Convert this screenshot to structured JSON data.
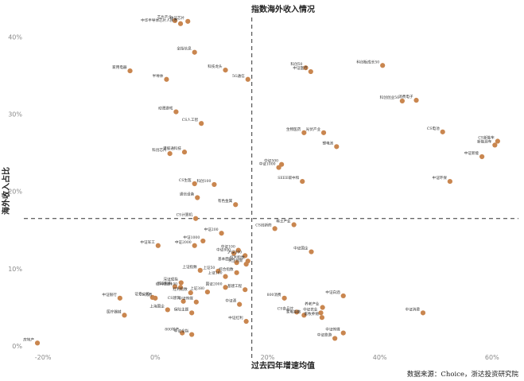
{
  "chart_data": {
    "type": "scatter",
    "title": "指数海外收入情况",
    "xlabel": "过去四年增速均值",
    "ylabel": "海外收入占比",
    "source": "数据来源：Choice，浙达投资研究院",
    "xlim": [
      -0.22,
      0.63
    ],
    "ylim": [
      -0.005,
      0.425
    ],
    "x_ticks": [
      -0.2,
      0.0,
      0.2,
      0.4,
      0.6
    ],
    "x_tick_labels": [
      "-20%",
      "0%",
      "20%",
      "40%",
      "60%"
    ],
    "y_ticks": [
      0.0,
      0.1,
      0.2,
      0.3,
      0.4
    ],
    "y_tick_labels": [
      "0%",
      "10%",
      "20%",
      "30%",
      "40%"
    ],
    "x_ref": 0.172,
    "y_ref": 0.165,
    "marker_color": "#c9864f",
    "points": [
      {
        "label": "芯片产业",
        "x": 0.035,
        "y": 0.421
      },
      {
        "label": "中证芯片",
        "x": 0.058,
        "y": 0.42
      },
      {
        "label": "中华半导体芯片人民币",
        "x": 0.045,
        "y": 0.417
      },
      {
        "label": "全指信息",
        "x": 0.07,
        "y": 0.38
      },
      {
        "label": "家用电器",
        "x": -0.045,
        "y": 0.356
      },
      {
        "label": "半导体",
        "x": 0.02,
        "y": 0.345
      },
      {
        "label": "科技龙头",
        "x": 0.125,
        "y": 0.357
      },
      {
        "label": "5G通信",
        "x": 0.165,
        "y": 0.345
      },
      {
        "label": "科创50",
        "x": 0.268,
        "y": 0.36
      },
      {
        "label": "中证医疗",
        "x": 0.277,
        "y": 0.355
      },
      {
        "label": "科创板成长50",
        "x": 0.405,
        "y": 0.363
      },
      {
        "label": "消费电子",
        "x": 0.465,
        "y": 0.318
      },
      {
        "label": "科创创业50",
        "x": 0.44,
        "y": 0.317
      },
      {
        "label": "动漫游戏",
        "x": 0.037,
        "y": 0.303
      },
      {
        "label": "CS人工智",
        "x": 0.082,
        "y": 0.288
      },
      {
        "label": "生物医药",
        "x": 0.265,
        "y": 0.276
      },
      {
        "label": "光伏产业",
        "x": 0.3,
        "y": 0.276
      },
      {
        "label": "锂电池",
        "x": 0.323,
        "y": 0.258
      },
      {
        "label": "CS电池",
        "x": 0.512,
        "y": 0.277
      },
      {
        "label": "CS新能车",
        "x": 0.61,
        "y": 0.265
      },
      {
        "label": "新能源车",
        "x": 0.605,
        "y": 0.26
      },
      {
        "label": "中证新能",
        "x": 0.582,
        "y": 0.245
      },
      {
        "label": "科创芯片",
        "x": 0.026,
        "y": 0.249
      },
      {
        "label": "港股通科技",
        "x": 0.052,
        "y": 0.251
      },
      {
        "label": "中证500",
        "x": 0.225,
        "y": 0.235
      },
      {
        "label": "中证1000",
        "x": 0.22,
        "y": 0.231
      },
      {
        "label": "中证环保",
        "x": 0.525,
        "y": 0.213
      },
      {
        "label": "CS生医",
        "x": 0.07,
        "y": 0.21
      },
      {
        "label": "科创100",
        "x": 0.105,
        "y": 0.209
      },
      {
        "label": "SEEE碳中和",
        "x": 0.262,
        "y": 0.213
      },
      {
        "label": "通信设备",
        "x": 0.075,
        "y": 0.192
      },
      {
        "label": "有色金属",
        "x": 0.143,
        "y": 0.183
      },
      {
        "label": "CS计算机",
        "x": 0.072,
        "y": 0.165
      },
      {
        "label": "稀土产业",
        "x": 0.247,
        "y": 0.157
      },
      {
        "label": "CS创新药",
        "x": 0.213,
        "y": 0.152
      },
      {
        "label": "中证军工",
        "x": 0.005,
        "y": 0.13
      },
      {
        "label": "中证200",
        "x": 0.118,
        "y": 0.146
      },
      {
        "label": "中证1000",
        "x": 0.085,
        "y": 0.136
      },
      {
        "label": "中证2000",
        "x": 0.07,
        "y": 0.13
      },
      {
        "label": "中证国企",
        "x": 0.278,
        "y": 0.122
      },
      {
        "label": "中证100",
        "x": 0.148,
        "y": 0.124
      },
      {
        "label": "中证800",
        "x": 0.14,
        "y": 0.12
      },
      {
        "label": "沪深300",
        "x": 0.16,
        "y": 0.117
      },
      {
        "label": "红利指数",
        "x": 0.165,
        "y": 0.11
      },
      {
        "label": "基本面50",
        "x": 0.145,
        "y": 0.108
      },
      {
        "label": "央企创新",
        "x": 0.162,
        "y": 0.106
      },
      {
        "label": "上证指数",
        "x": 0.08,
        "y": 0.098
      },
      {
        "label": "上证50",
        "x": 0.112,
        "y": 0.097
      },
      {
        "label": "上证180",
        "x": 0.125,
        "y": 0.09
      },
      {
        "label": "综合指数",
        "x": 0.145,
        "y": 0.095
      },
      {
        "label": "深证成指",
        "x": 0.046,
        "y": 0.082
      },
      {
        "label": "创业板指",
        "x": 0.035,
        "y": 0.077
      },
      {
        "label": "红利低波100",
        "x": 0.045,
        "y": 0.076
      },
      {
        "label": "红利指数",
        "x": 0.063,
        "y": 0.069
      },
      {
        "label": "上证380",
        "x": 0.093,
        "y": 0.07
      },
      {
        "label": "国证2000",
        "x": 0.125,
        "y": 0.076
      },
      {
        "label": "基建工程",
        "x": 0.16,
        "y": 0.073
      },
      {
        "label": "证券公司",
        "x": -0.005,
        "y": 0.063
      },
      {
        "label": "中证银行",
        "x": -0.063,
        "y": 0.062
      },
      {
        "label": "CS消费",
        "x": 0.0,
        "y": 0.062
      },
      {
        "label": "CS建筑",
        "x": 0.05,
        "y": 0.058
      },
      {
        "label": "中证传媒",
        "x": 0.073,
        "y": 0.057
      },
      {
        "label": "中证酒",
        "x": 0.15,
        "y": 0.054
      },
      {
        "label": "800消费",
        "x": 0.23,
        "y": 0.062
      },
      {
        "label": "中证白酒",
        "x": 0.335,
        "y": 0.065
      },
      {
        "label": "养老产业",
        "x": 0.298,
        "y": 0.05
      },
      {
        "label": "CS食品饮",
        "x": 0.252,
        "y": 0.044
      },
      {
        "label": "中证农业",
        "x": 0.295,
        "y": 0.043
      },
      {
        "label": "中证消费",
        "x": 0.477,
        "y": 0.043
      },
      {
        "label": "医疗器械",
        "x": -0.055,
        "y": 0.04
      },
      {
        "label": "上海国企",
        "x": 0.022,
        "y": 0.047
      },
      {
        "label": "保险主题",
        "x": 0.065,
        "y": 0.043
      },
      {
        "label": "家电指数",
        "x": 0.265,
        "y": 0.04
      },
      {
        "label": "畜牧养殖",
        "x": 0.297,
        "y": 0.037
      },
      {
        "label": "中证红利",
        "x": 0.162,
        "y": 0.032
      },
      {
        "label": "800地产",
        "x": 0.048,
        "y": 0.017
      },
      {
        "label": "中证全指",
        "x": 0.065,
        "y": 0.015
      },
      {
        "label": "中证传媒",
        "x": 0.335,
        "y": 0.017
      },
      {
        "label": "中证旅游",
        "x": 0.32,
        "y": 0.01
      },
      {
        "label": "房地产",
        "x": -0.21,
        "y": 0.004
      }
    ]
  }
}
